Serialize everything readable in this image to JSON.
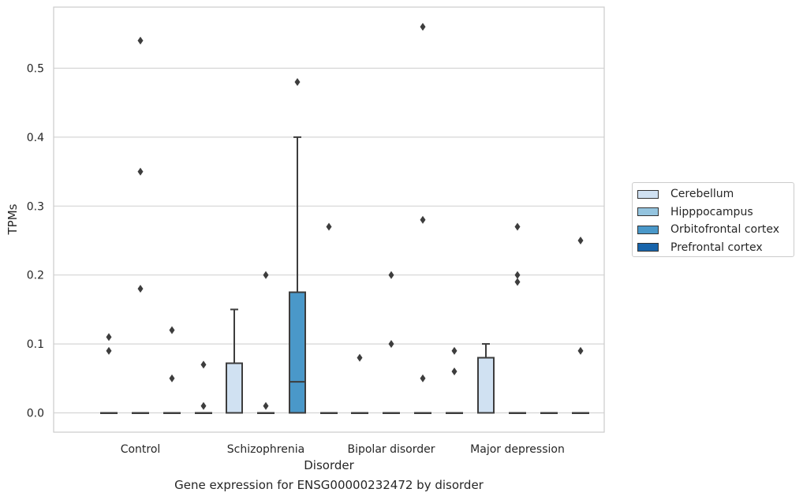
{
  "chart_data": {
    "type": "box",
    "title": "",
    "caption": "Gene expression for ENSG00000232472 by disorder",
    "xlabel": "Disorder",
    "ylabel": "TPMs",
    "ylim": [
      -0.028,
      0.59
    ],
    "yticks": [
      "0.0",
      "0.1",
      "0.2",
      "0.3",
      "0.4",
      "0.5"
    ],
    "categories": [
      "Control",
      "Schizophrenia",
      "Bipolar disorder",
      "Major depression"
    ],
    "grid": "horizontal",
    "legend_position": "right",
    "series": [
      {
        "name": "Cerebellum",
        "color": "#d0e1f2",
        "boxes": [
          {
            "q1": 0,
            "median": 0,
            "q3": 0,
            "whisker_low": 0,
            "whisker_high": 0,
            "outliers": [
              0.11,
              0.09
            ]
          },
          {
            "q1": 0,
            "median": 0,
            "q3": 0.072,
            "whisker_low": 0,
            "whisker_high": 0.15,
            "outliers": []
          },
          {
            "q1": 0,
            "median": 0,
            "q3": 0,
            "whisker_low": 0,
            "whisker_high": 0,
            "outliers": [
              0.08
            ]
          },
          {
            "q1": 0,
            "median": 0,
            "q3": 0.08,
            "whisker_low": 0,
            "whisker_high": 0.1,
            "outliers": []
          }
        ]
      },
      {
        "name": "Hipppocampus",
        "color": "#94c4df",
        "boxes": [
          {
            "q1": 0,
            "median": 0,
            "q3": 0,
            "whisker_low": 0,
            "whisker_high": 0,
            "outliers": [
              0.54,
              0.35,
              0.18
            ]
          },
          {
            "q1": 0,
            "median": 0,
            "q3": 0,
            "whisker_low": 0,
            "whisker_high": 0,
            "outliers": [
              0.2,
              0.01
            ]
          },
          {
            "q1": 0,
            "median": 0,
            "q3": 0,
            "whisker_low": 0,
            "whisker_high": 0,
            "outliers": [
              0.2,
              0.1
            ]
          },
          {
            "q1": 0,
            "median": 0,
            "q3": 0,
            "whisker_low": 0,
            "whisker_high": 0,
            "outliers": [
              0.27,
              0.2,
              0.19
            ]
          }
        ]
      },
      {
        "name": "Orbitofrontal cortex",
        "color": "#4a98c9",
        "boxes": [
          {
            "q1": 0,
            "median": 0,
            "q3": 0,
            "whisker_low": 0,
            "whisker_high": 0,
            "outliers": [
              0.12,
              0.05
            ]
          },
          {
            "q1": 0,
            "median": 0.045,
            "q3": 0.175,
            "whisker_low": 0,
            "whisker_high": 0.4,
            "outliers": [
              0.48
            ]
          },
          {
            "q1": 0,
            "median": 0,
            "q3": 0,
            "whisker_low": 0,
            "whisker_high": 0,
            "outliers": [
              0.56,
              0.28,
              0.05
            ]
          },
          {
            "q1": 0,
            "median": 0,
            "q3": 0,
            "whisker_low": 0,
            "whisker_high": 0,
            "outliers": []
          }
        ]
      },
      {
        "name": "Prefrontal cortex",
        "color": "#1764ab",
        "boxes": [
          {
            "q1": 0,
            "median": 0,
            "q3": 0,
            "whisker_low": 0,
            "whisker_high": 0,
            "outliers": [
              0.07,
              0.01
            ]
          },
          {
            "q1": 0,
            "median": 0,
            "q3": 0,
            "whisker_low": 0,
            "whisker_high": 0,
            "outliers": [
              0.27
            ]
          },
          {
            "q1": 0,
            "median": 0,
            "q3": 0,
            "whisker_low": 0,
            "whisker_high": 0,
            "outliers": [
              0.09,
              0.06
            ]
          },
          {
            "q1": 0,
            "median": 0,
            "q3": 0,
            "whisker_low": 0,
            "whisker_high": 0,
            "outliers": [
              0.25,
              0.09
            ]
          }
        ]
      }
    ]
  }
}
